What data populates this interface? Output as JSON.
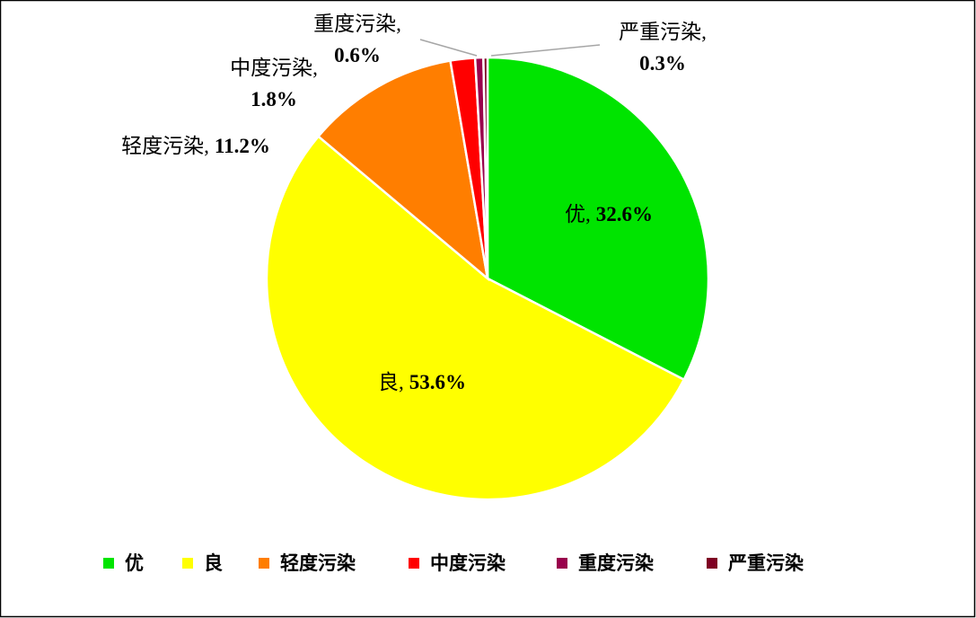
{
  "chart_data": {
    "type": "pie",
    "categories": [
      "优",
      "良",
      "轻度污染",
      "中度污染",
      "重度污染",
      "严重污染"
    ],
    "values": [
      32.6,
      53.6,
      11.2,
      1.8,
      0.6,
      0.3
    ],
    "value_labels": [
      "32.6%",
      "53.6%",
      "11.2%",
      "1.8%",
      "0.6%",
      "0.3%"
    ],
    "colors": [
      "#00e400",
      "#ffff00",
      "#ff7e00",
      "#ff0000",
      "#99004c",
      "#7e0023"
    ],
    "label_separator": ",",
    "legend": "bottom"
  }
}
